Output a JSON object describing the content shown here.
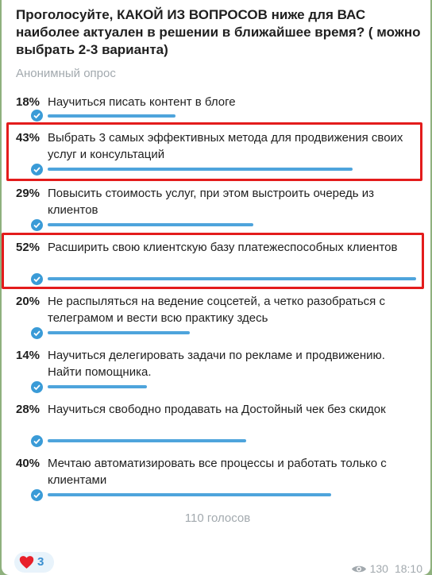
{
  "poll": {
    "question": "Проголосуйте, КАКОЙ ИЗ ВОПРОСОВ ниже для ВАС наиболее актуален в решении в ближайшее время? ( можно выбрать 2-3 варианта)",
    "type_label": "Анонимный опрос",
    "options": [
      {
        "percent": "18%",
        "text": "Научиться писать контент в блоге",
        "fraction": 0.346
      },
      {
        "percent": "43%",
        "text": "Выбрать 3 самых эффективных метода для продвижения своих услуг и консультаций",
        "fraction": 0.827
      },
      {
        "percent": "29%",
        "text": "Повысить стоимость услуг,  при этом выстроить очередь из клиентов",
        "fraction": 0.558
      },
      {
        "percent": "52%",
        "text": "Расширить свою клиентскую базу платежеспособных клиентов",
        "fraction": 1.0
      },
      {
        "percent": "20%",
        "text": "Не распыляться на ведение соцсетей, а четко разобраться с телеграмом и вести всю практику здесь",
        "fraction": 0.385
      },
      {
        "percent": "14%",
        "text": "Научиться делегировать задачи по рекламе и продвижению. Найти помощника.",
        "fraction": 0.269
      },
      {
        "percent": "28%",
        "text": "Научиться свободно продавать на Достойный чек без скидок",
        "fraction": 0.538
      },
      {
        "percent": "40%",
        "text": "Мечтаю автоматизировать все процессы и работать только с клиентами",
        "fraction": 0.769
      }
    ],
    "total_votes": "110 голосов"
  },
  "reaction": {
    "emoji": "heart-icon",
    "count": "3"
  },
  "meta": {
    "views": "130",
    "time": "18:10"
  },
  "colors": {
    "accent": "#4ea4dc",
    "highlight": "#e31c1c",
    "background": "#8fb17e"
  }
}
